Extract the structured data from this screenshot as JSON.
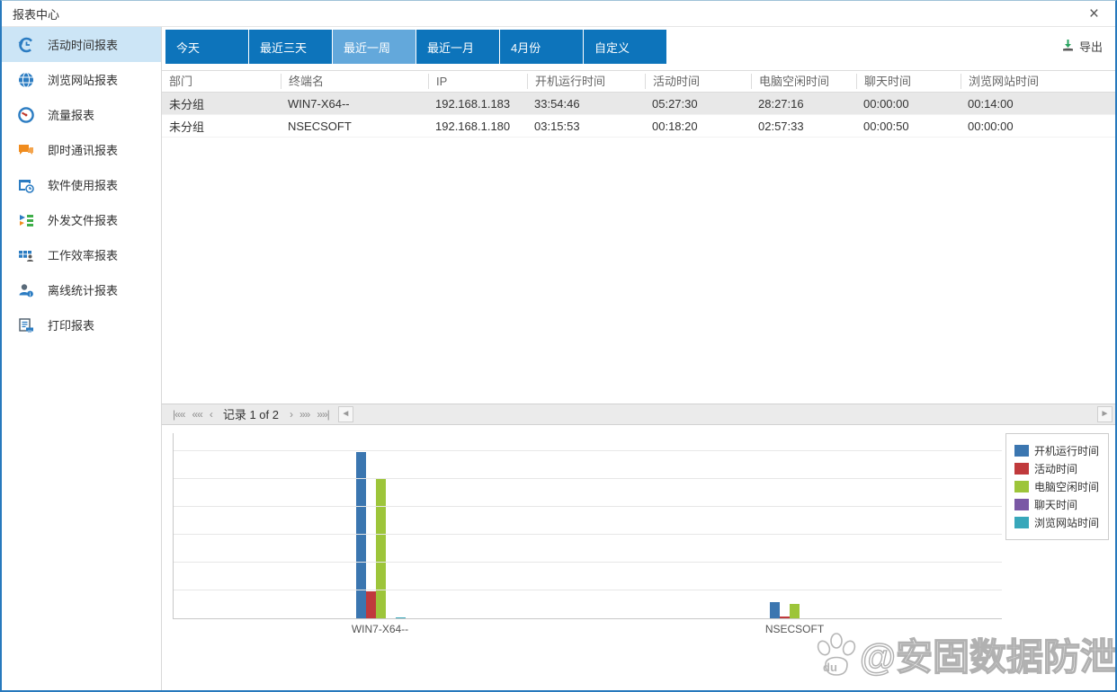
{
  "window": {
    "title": "报表中心",
    "close_icon": "×"
  },
  "sidebar": {
    "items": [
      {
        "label": "活动时间报表",
        "icon": "history-clock-icon",
        "active": true
      },
      {
        "label": "浏览网站报表",
        "icon": "globe-icon",
        "active": false
      },
      {
        "label": "流量报表",
        "icon": "gauge-icon",
        "active": false
      },
      {
        "label": "即时通讯报表",
        "icon": "chat-icon",
        "active": false
      },
      {
        "label": "软件使用报表",
        "icon": "software-usage-icon",
        "active": false
      },
      {
        "label": "外发文件报表",
        "icon": "outgoing-file-icon",
        "active": false
      },
      {
        "label": "工作效率报表",
        "icon": "efficiency-grid-icon",
        "active": false
      },
      {
        "label": "离线统计报表",
        "icon": "offline-user-icon",
        "active": false
      },
      {
        "label": "打印报表",
        "icon": "print-icon",
        "active": false
      }
    ]
  },
  "tabs": [
    {
      "label": "今天",
      "active": false
    },
    {
      "label": "最近三天",
      "active": false
    },
    {
      "label": "最近一周",
      "active": true
    },
    {
      "label": "最近一月",
      "active": false
    },
    {
      "label": "4月份",
      "active": false
    },
    {
      "label": "自定义",
      "active": false
    }
  ],
  "toolbar": {
    "export_label": "导出"
  },
  "table": {
    "columns": [
      "部门",
      "终端名",
      "IP",
      "开机运行时间",
      "活动时间",
      "电脑空闲时间",
      "聊天时间",
      "浏览网站时间"
    ],
    "rows": [
      [
        "未分组",
        "WIN7-X64--",
        "192.168.1.183",
        "33:54:46",
        "05:27:30",
        "28:27:16",
        "00:00:00",
        "00:14:00"
      ],
      [
        "未分组",
        "NSECSOFT",
        "192.168.1.180",
        "03:15:53",
        "00:18:20",
        "02:57:33",
        "00:00:50",
        "00:00:00"
      ]
    ],
    "selected_row_index": 0
  },
  "pagination": {
    "record_text": "记录 1 of 2",
    "nav_icons": [
      "first",
      "fast-prev",
      "prev",
      "next",
      "fast-next",
      "last"
    ]
  },
  "chart_data": {
    "type": "bar",
    "categories": [
      "WIN7-X64--",
      "NSECSOFT"
    ],
    "series": [
      {
        "name": "开机运行时间",
        "color": "#3b76b0",
        "values": [
          33.91,
          3.26
        ]
      },
      {
        "name": "活动时间",
        "color": "#c03a3c",
        "values": [
          5.46,
          0.31
        ]
      },
      {
        "name": "电脑空闲时间",
        "color": "#9dc53a",
        "values": [
          28.45,
          2.96
        ]
      },
      {
        "name": "聊天时间",
        "color": "#7a58a5",
        "values": [
          0,
          0.01
        ]
      },
      {
        "name": "浏览网站时间",
        "color": "#38a7ba",
        "values": [
          0.23,
          0
        ]
      }
    ],
    "title": "",
    "xlabel": "",
    "ylabel": "",
    "ylim": [
      0,
      38
    ],
    "grid": true,
    "legend_position": "top-right",
    "note": "values are hours parsed from hh:mm:ss table columns"
  },
  "watermark": {
    "logo_text": "du",
    "text": "@安固数据防泄密"
  },
  "colors": {
    "tab_blue": "#0d74bb",
    "tab_active_blue": "#63a8db",
    "sidebar_active_bg": "#cce5f6",
    "window_border": "#2779bd",
    "export_green": "#27a35f",
    "selected_row_bg": "#e8e8e8"
  }
}
